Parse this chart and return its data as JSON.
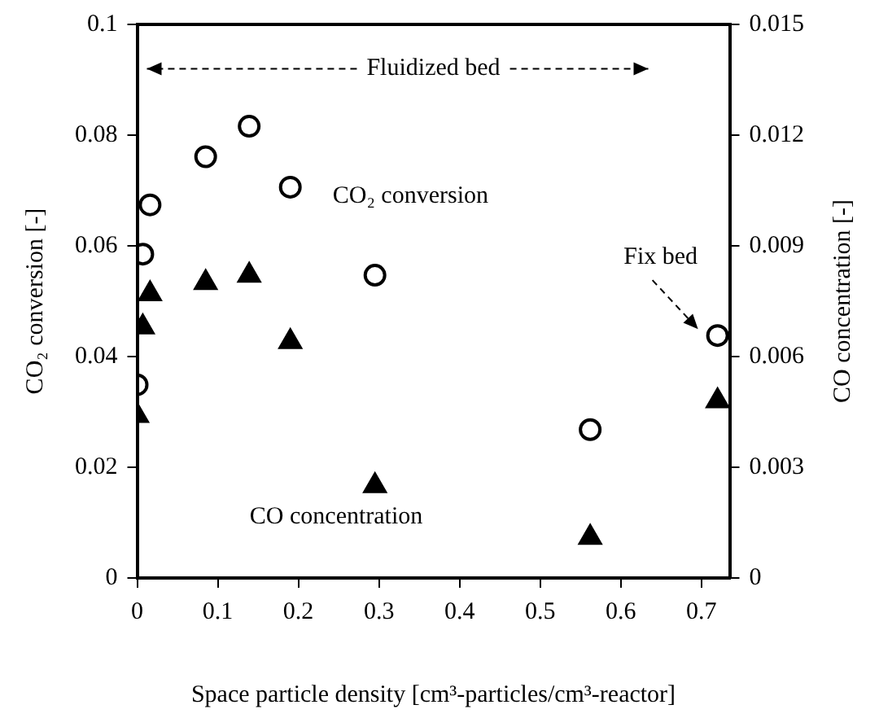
{
  "chart_data": {
    "type": "scatter",
    "xlabel": "Space particle density [cm³-particles/cm³-reactor]",
    "ylabel": "CO₂ conversion [-]",
    "y2label": "CO concentration [-]",
    "series": [
      {
        "name": "CO₂ conversion",
        "color": "#000000",
        "marker": "circle",
        "x": [
          0.0,
          0.007,
          0.016,
          0.085,
          0.139,
          0.19,
          0.295,
          0.562,
          0.72
        ],
        "values": [
          0.0349,
          0.0585,
          0.0674,
          0.0761,
          0.0816,
          0.0706,
          0.0547,
          0.0268,
          0.0438
        ]
      },
      {
        "name": "CO concentration",
        "color": "#000000",
        "marker": "triangle",
        "axis": "y2",
        "x": [
          0.0,
          0.007,
          0.016,
          0.085,
          0.139,
          0.19,
          0.295,
          0.562,
          0.72
        ],
        "values": [
          0.0044,
          0.0068,
          0.0077,
          0.008,
          0.0082,
          0.0064,
          0.0025,
          0.0011,
          0.0048
        ]
      }
    ],
    "xlim": [
      0,
      0.735
    ],
    "xticks": [
      0,
      0.1,
      0.2,
      0.3,
      0.4,
      0.5,
      0.6,
      0.7
    ],
    "ylim": [
      0,
      0.1
    ],
    "yticks": [
      0,
      0.02,
      0.04,
      0.06,
      0.08,
      0.1
    ],
    "y2lim": [
      0,
      0.015
    ],
    "y2ticks": [
      0,
      0.003,
      0.006,
      0.009,
      0.012,
      0.015
    ],
    "annotations": [
      "Fluidized bed",
      {
        "text": "Fix bed",
        "x": 0.72,
        "y": 0.0438
      }
    ],
    "legend": false,
    "grid": false
  }
}
